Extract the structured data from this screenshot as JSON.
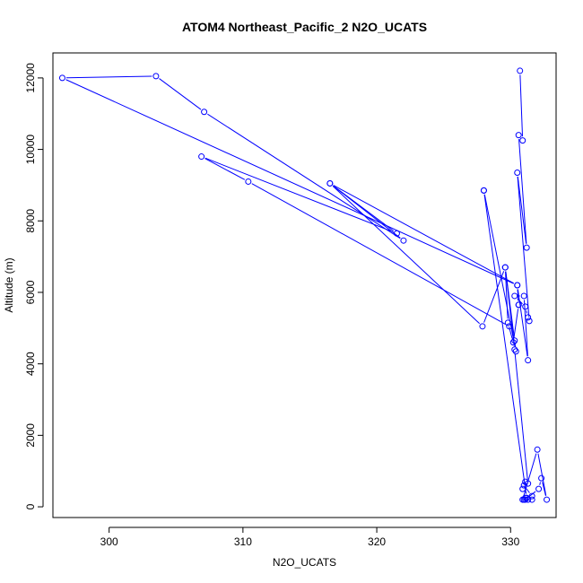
{
  "chart_data": {
    "type": "line",
    "title": "ATOM4 Northeast_Pacific_2 N2O_UCATS",
    "xlabel": "N2O_UCATS",
    "ylabel": "Altitude (m)",
    "xlim": [
      295.8,
      333.4
    ],
    "ylim": [
      -300,
      12700
    ],
    "xticks": [
      300,
      310,
      320,
      330
    ],
    "yticks": [
      0,
      2000,
      4000,
      6000,
      8000,
      10000,
      12000
    ],
    "grid": false,
    "legend": "none",
    "markers": "open-circle",
    "line_color": "#0000ff",
    "series": [
      {
        "x": [
          330.7,
          330.9,
          330.6,
          331.2,
          330.5,
          331.4,
          331.3,
          331.1,
          330.3,
          331.0,
          331.3,
          330.5,
          330.6,
          330.6,
          330.2,
          329.8,
          329.6,
          330.3,
          330.4,
          328.0,
          328.0,
          331.2,
          331.0,
          331.6,
          331.3,
          331.1,
          330.9,
          332.0,
          332.7,
          332.3,
          332.1,
          331.1,
          331.6,
          331.0,
          330.9,
          331.1,
          331.3,
          330.3,
          329.6,
          327.9,
          316.5,
          322.0,
          307.1,
          303.5,
          296.5,
          330.5,
          316.5,
          321.5,
          306.9,
          310.4,
          329.9
        ],
        "y": [
          12200,
          10250,
          10400,
          7250,
          9350,
          5200,
          5300,
          5600,
          5900,
          5900,
          4100,
          6200,
          5650,
          5650,
          4600,
          5150,
          6700,
          4650,
          4350,
          8850,
          8850,
          250,
          200,
          200,
          200,
          250,
          200,
          1600,
          200,
          800,
          500,
          200,
          300,
          600,
          500,
          700,
          650,
          4400,
          6700,
          5050,
          9050,
          7450,
          11050,
          12050,
          12000,
          6200,
          9050,
          7650,
          9800,
          9100,
          5050
        ]
      }
    ]
  }
}
